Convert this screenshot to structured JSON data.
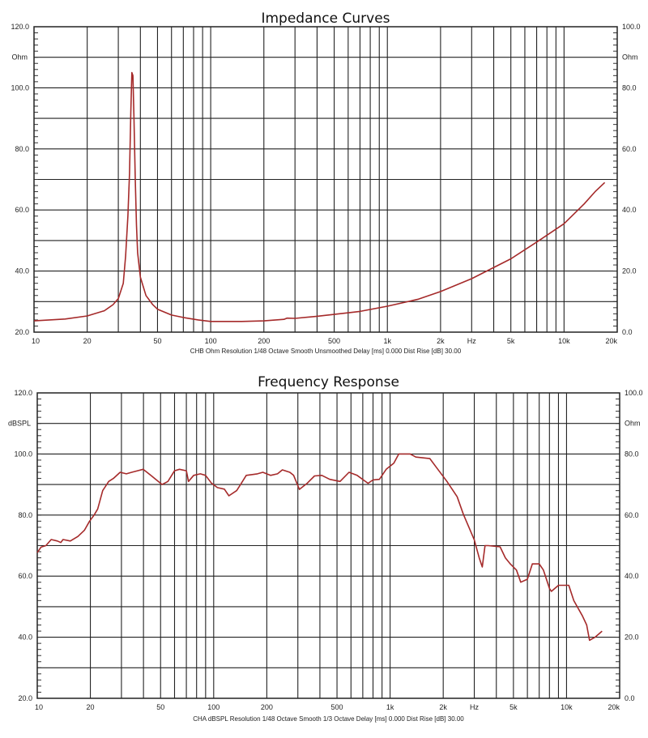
{
  "chart_data": [
    {
      "type": "line",
      "title": "Impedance Curves",
      "xscale": "log",
      "xlim": [
        10,
        20000
      ],
      "ylim": [
        20,
        120
      ],
      "ylabel": "Ohm",
      "ylim_right": [
        0,
        100
      ],
      "ylabel_right": "Ohm",
      "xlabel": "Hz",
      "y_ticks": [
        "120.0",
        "100.0",
        "80.0",
        "60.0",
        "40.0",
        "20.0"
      ],
      "y_ticks_right": [
        "100.0",
        "80.0",
        "60.0",
        "40.0",
        "20.0",
        "0.0"
      ],
      "x_ticks": [
        {
          "value": 10,
          "label": "10"
        },
        {
          "value": 20,
          "label": "20"
        },
        {
          "value": 50,
          "label": "50"
        },
        {
          "value": 100,
          "label": "100"
        },
        {
          "value": 200,
          "label": "200"
        },
        {
          "value": 500,
          "label": "500"
        },
        {
          "value": 1000,
          "label": "1k"
        },
        {
          "value": 2000,
          "label": "2k"
        },
        {
          "value": 5000,
          "label": "5k"
        },
        {
          "value": 10000,
          "label": "10k"
        },
        {
          "value": 20000,
          "label": "20k"
        }
      ],
      "footer": "CHB Ohm Resolution 1/48 Octave Smooth Unsmoothed Delay [ms] 0.000 Dist Rise [dB] 30.00",
      "grid": true,
      "color": "#a52a2a",
      "series": [
        {
          "name": "Impedance",
          "points": [
            [
              10,
              23.7
            ],
            [
              15,
              24.3
            ],
            [
              20,
              25.3
            ],
            [
              25,
              27
            ],
            [
              28,
              29
            ],
            [
              30,
              31
            ],
            [
              32,
              36
            ],
            [
              33,
              45
            ],
            [
              34,
              58
            ],
            [
              34.7,
              72
            ],
            [
              35.3,
              92
            ],
            [
              35.8,
              105
            ],
            [
              36.3,
              104
            ],
            [
              36.8,
              90
            ],
            [
              37.4,
              70
            ],
            [
              38,
              55
            ],
            [
              38.6,
              46
            ],
            [
              40,
              38
            ],
            [
              43,
              32
            ],
            [
              47,
              29
            ],
            [
              50,
              27.5
            ],
            [
              60,
              25.6
            ],
            [
              70,
              24.8
            ],
            [
              85,
              24
            ],
            [
              100,
              23.5
            ],
            [
              150,
              23.5
            ],
            [
              200,
              23.7
            ],
            [
              260,
              24.2
            ],
            [
              270,
              24.6
            ],
            [
              300,
              24.5
            ],
            [
              400,
              25.2
            ],
            [
              500,
              25.8
            ],
            [
              700,
              26.8
            ],
            [
              1000,
              28.5
            ],
            [
              1500,
              30.8
            ],
            [
              2000,
              33.3
            ],
            [
              3000,
              37.5
            ],
            [
              5000,
              44
            ],
            [
              7000,
              49.5
            ],
            [
              10000,
              55.5
            ],
            [
              13000,
              62
            ],
            [
              15000,
              66
            ],
            [
              17000,
              69
            ]
          ]
        }
      ]
    },
    {
      "type": "line",
      "title": "Frequency Response",
      "xscale": "log",
      "xlim": [
        10,
        20000
      ],
      "ylim": [
        20,
        120
      ],
      "ylabel": "dBSPL",
      "ylim_right": [
        0,
        100
      ],
      "ylabel_right": "Ohm",
      "xlabel": "Hz",
      "y_ticks": [
        "120.0",
        "100.0",
        "80.0",
        "60.0",
        "40.0",
        "20.0"
      ],
      "y_ticks_right": [
        "100.0",
        "80.0",
        "60.0",
        "40.0",
        "20.0",
        "0.0"
      ],
      "x_ticks": [
        {
          "value": 10,
          "label": "10"
        },
        {
          "value": 20,
          "label": "20"
        },
        {
          "value": 50,
          "label": "50"
        },
        {
          "value": 100,
          "label": "100"
        },
        {
          "value": 200,
          "label": "200"
        },
        {
          "value": 500,
          "label": "500"
        },
        {
          "value": 1000,
          "label": "1k"
        },
        {
          "value": 2000,
          "label": "2k"
        },
        {
          "value": 5000,
          "label": "5k"
        },
        {
          "value": 10000,
          "label": "10k"
        },
        {
          "value": 20000,
          "label": "20k"
        }
      ],
      "footer": "CHA dBSPL Resolution 1/48 Octave Smooth 1/3 Octave Delay [ms] 0.000 Dist Rise [dB] 30.00",
      "grid": true,
      "color": "#a52a2a",
      "series": [
        {
          "name": "SPL",
          "points": [
            [
              10,
              67.7
            ],
            [
              10.5,
              69.5
            ],
            [
              11.2,
              70
            ],
            [
              12,
              72
            ],
            [
              13,
              71.5
            ],
            [
              13.6,
              71
            ],
            [
              14,
              72
            ],
            [
              15.4,
              71.5
            ],
            [
              17,
              73
            ],
            [
              18.5,
              75
            ],
            [
              19.8,
              78
            ],
            [
              21,
              80
            ],
            [
              22,
              82
            ],
            [
              23.5,
              88
            ],
            [
              25.4,
              91
            ],
            [
              27,
              92
            ],
            [
              29.5,
              94
            ],
            [
              32,
              93.5
            ],
            [
              34.3,
              94
            ],
            [
              37,
              94.5
            ],
            [
              39.8,
              95
            ],
            [
              44,
              93
            ],
            [
              51,
              90
            ],
            [
              55,
              91
            ],
            [
              60,
              94.5
            ],
            [
              64,
              95
            ],
            [
              70,
              94.5
            ],
            [
              72,
              91
            ],
            [
              77,
              93
            ],
            [
              84,
              93.5
            ],
            [
              90,
              93
            ],
            [
              97,
              90.5
            ],
            [
              105,
              89
            ],
            [
              115,
              88.5
            ],
            [
              122,
              86.3
            ],
            [
              135,
              88
            ],
            [
              142,
              90
            ],
            [
              153,
              93
            ],
            [
              177,
              93.5
            ],
            [
              190,
              94
            ],
            [
              210,
              93
            ],
            [
              230,
              93.5
            ],
            [
              245,
              94.8
            ],
            [
              270,
              94
            ],
            [
              284,
              93
            ],
            [
              306,
              88.4
            ],
            [
              340,
              90.5
            ],
            [
              373,
              92.8
            ],
            [
              410,
              93
            ],
            [
              455,
              91.7
            ],
            [
              520,
              91
            ],
            [
              585,
              94
            ],
            [
              650,
              93
            ],
            [
              750,
              90.4
            ],
            [
              800,
              91.5
            ],
            [
              870,
              91.7
            ],
            [
              950,
              95
            ],
            [
              1050,
              97
            ],
            [
              1120,
              100
            ],
            [
              1300,
              100
            ],
            [
              1400,
              99
            ],
            [
              1680,
              98.5
            ],
            [
              1840,
              95.4
            ],
            [
              2100,
              91
            ],
            [
              2400,
              86
            ],
            [
              2600,
              80.3
            ],
            [
              3000,
              71.9
            ],
            [
              3200,
              66
            ],
            [
              3330,
              63
            ],
            [
              3450,
              70
            ],
            [
              3600,
              70
            ],
            [
              4200,
              69.6
            ],
            [
              4500,
              66
            ],
            [
              4800,
              64
            ],
            [
              5200,
              62
            ],
            [
              5500,
              58
            ],
            [
              6000,
              59
            ],
            [
              6400,
              64
            ],
            [
              7000,
              64
            ],
            [
              7400,
              62
            ],
            [
              8000,
              56
            ],
            [
              8200,
              55
            ],
            [
              9000,
              57
            ],
            [
              10300,
              57
            ],
            [
              11000,
              52
            ],
            [
              12300,
              47
            ],
            [
              13000,
              44
            ],
            [
              13500,
              39
            ],
            [
              14500,
              40
            ],
            [
              15900,
              42
            ]
          ]
        }
      ]
    }
  ]
}
